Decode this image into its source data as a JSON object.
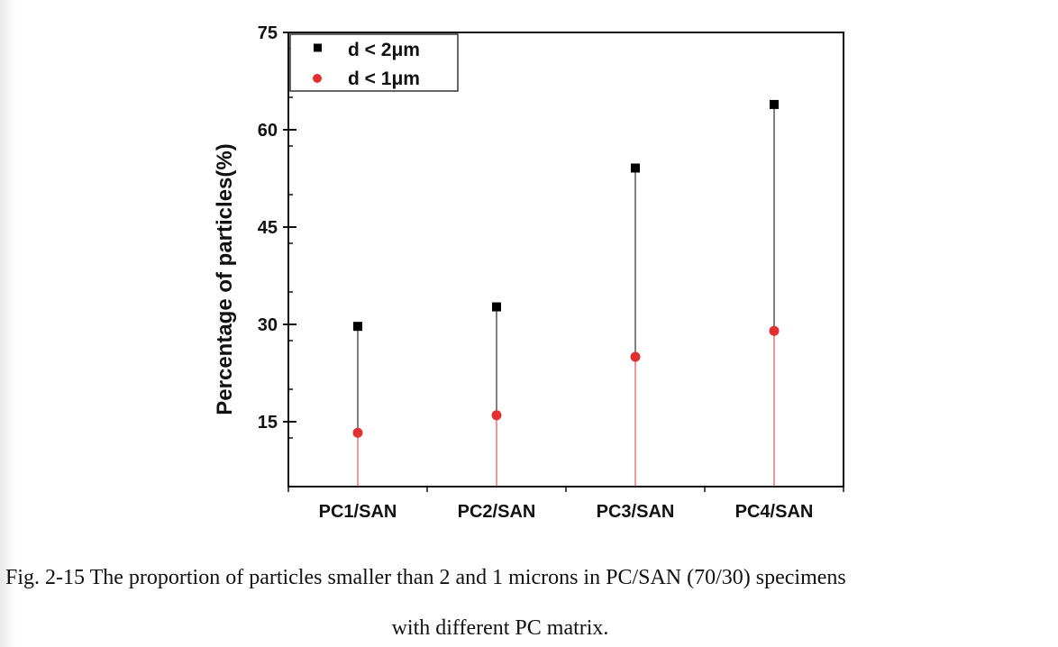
{
  "chart_data": {
    "type": "scatter",
    "categories": [
      "PC1/SAN",
      "PC2/SAN",
      "PC3/SAN",
      "PC4/SAN"
    ],
    "series": [
      {
        "name": "d < 2μm",
        "values": [
          29.7,
          32.7,
          54.1,
          63.9
        ],
        "color": "#000000",
        "marker": "square",
        "stem_color": "#000000"
      },
      {
        "name": "d < 1μm",
        "values": [
          13.3,
          16.0,
          25.0,
          29.0
        ],
        "color": "#e03030",
        "marker": "circle",
        "stem_color": "#e03030"
      }
    ],
    "ylabel": "Percentage of particles(%)",
    "xlabel": "",
    "ylim": [
      5,
      75
    ],
    "yticks": [
      15,
      30,
      45,
      60,
      75
    ],
    "yminor_step": 7.5,
    "grid": false,
    "legend_position": "top-left"
  },
  "caption": {
    "line1": "Fig. 2-15 The proportion of particles smaller than 2 and 1 microns in PC/SAN (70/30) specimens",
    "line2": "with different PC matrix."
  }
}
